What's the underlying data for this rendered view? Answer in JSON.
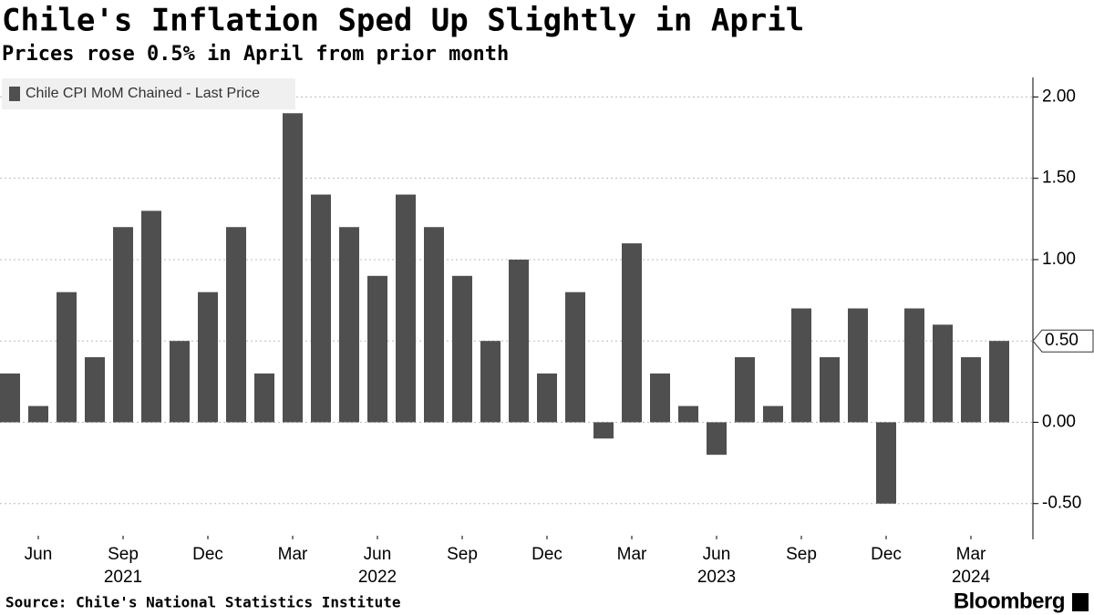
{
  "chart_data": {
    "type": "bar",
    "title": "Chile's Inflation Sped Up Slightly in April",
    "subtitle": "Prices rose 0.5% in April from prior month",
    "source": "Source: Chile's National Statistics Institute",
    "brand": "Bloomberg",
    "categories": [
      null,
      "Jun",
      null,
      null,
      "Sep",
      null,
      null,
      "Dec",
      null,
      null,
      "Mar",
      null,
      null,
      "Jun",
      null,
      null,
      "Sep",
      null,
      null,
      "Dec",
      null,
      null,
      "Mar",
      null,
      null,
      "Jun",
      null,
      null,
      "Sep",
      null,
      null,
      "Dec",
      null,
      null,
      "Mar",
      null
    ],
    "year_labels": [
      null,
      null,
      null,
      null,
      "2021",
      null,
      null,
      null,
      null,
      null,
      null,
      null,
      null,
      "2022",
      null,
      null,
      null,
      null,
      null,
      null,
      null,
      null,
      null,
      null,
      null,
      "2023",
      null,
      null,
      null,
      null,
      null,
      null,
      null,
      null,
      "2024",
      null
    ],
    "series": [
      {
        "name": "Chile CPI MoM Chained - Last Price",
        "color": "#4f4f4f",
        "values": [
          0.3,
          0.1,
          0.8,
          0.4,
          1.2,
          1.3,
          0.5,
          0.8,
          1.2,
          0.3,
          1.9,
          1.4,
          1.2,
          0.9,
          1.4,
          1.2,
          0.9,
          0.5,
          1.0,
          0.3,
          0.8,
          -0.1,
          1.1,
          0.3,
          0.1,
          -0.2,
          0.4,
          0.1,
          0.7,
          0.4,
          0.7,
          -0.5,
          0.7,
          0.6,
          0.4,
          0.5
        ],
        "value_labels": [
          null,
          null,
          null,
          null,
          null,
          null,
          null,
          null,
          null,
          null,
          null,
          null,
          null,
          null,
          null,
          null,
          null,
          null,
          null,
          null,
          null,
          null,
          null,
          null,
          null,
          null,
          null,
          null,
          null,
          null,
          null,
          null,
          null,
          null,
          null,
          "0.50"
        ]
      }
    ],
    "ylim": [
      -0.72,
      2.12
    ],
    "yticks": [
      {
        "value": -0.5,
        "label": "-0.50"
      },
      {
        "value": 0,
        "label": "0.00"
      },
      {
        "value": 0.5,
        "label": "0.50"
      },
      {
        "value": 1,
        "label": "1.00"
      },
      {
        "value": 1.5,
        "label": "1.50"
      },
      {
        "value": 2,
        "label": "2.00"
      }
    ],
    "grid": true,
    "legend": "top-left"
  }
}
